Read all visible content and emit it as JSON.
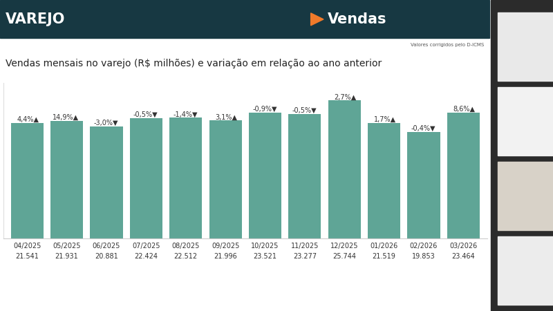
{
  "header": {
    "section": "VAREJO",
    "topic": "Vendas"
  },
  "note": "Valores corrigidos pelo D-ICMS",
  "chart_data": {
    "type": "bar",
    "title": "Vendas mensais no varejo (R$ milhões) e variação em relação ao ano anterior",
    "categories": [
      "04/2025",
      "05/2025",
      "06/2025",
      "07/2025",
      "08/2025",
      "09/2025",
      "10/2025",
      "11/2025",
      "12/2025",
      "01/2026",
      "02/2026",
      "03/2026"
    ],
    "values": [
      21541,
      21931,
      20881,
      22424,
      22512,
      21996,
      23521,
      23277,
      25744,
      21519,
      19853,
      23464
    ],
    "value_labels": [
      "21.541",
      "21.931",
      "20.881",
      "22.424",
      "22.512",
      "21.996",
      "23.521",
      "23.277",
      "25.744",
      "21.519",
      "19.853",
      "23.464"
    ],
    "variation": {
      "values": [
        4.4,
        14.9,
        -3.0,
        -0.5,
        -1.4,
        3.1,
        -0.9,
        -0.5,
        2.7,
        1.7,
        -0.4,
        8.6
      ],
      "value_labels": [
        "4,4%▲",
        "14,9%▲",
        "-3,0%▼",
        "-0,5%▼",
        "-1,4%▼",
        "3,1%▲",
        "-0,9%▼",
        "-0,5%▼",
        "2,7%▲",
        "1,7%▲",
        "-0,4%▼",
        "8,6%▲"
      ]
    },
    "color": "#5fa596",
    "ylim": [
      0,
      29000
    ],
    "yticks": [],
    "tick_labels": "x",
    "data_labels": true,
    "grid": false
  }
}
